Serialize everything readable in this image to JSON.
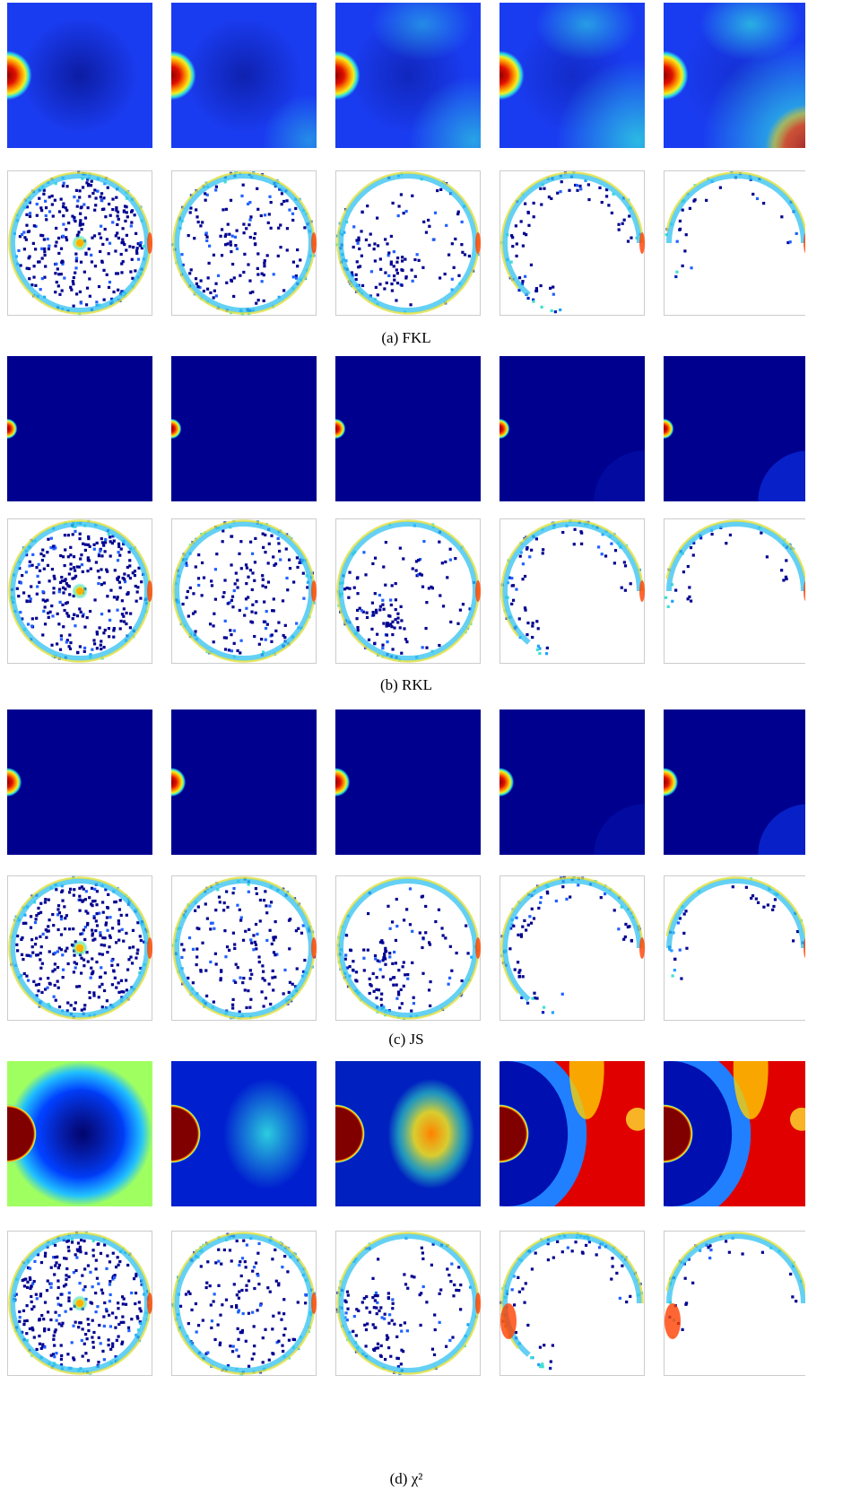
{
  "figure": {
    "panels": [
      {
        "caption": "(a) FKL"
      },
      {
        "caption": "(b) RKL"
      },
      {
        "caption": "(c) JS"
      },
      {
        "caption": "(d) χ²"
      }
    ]
  }
}
